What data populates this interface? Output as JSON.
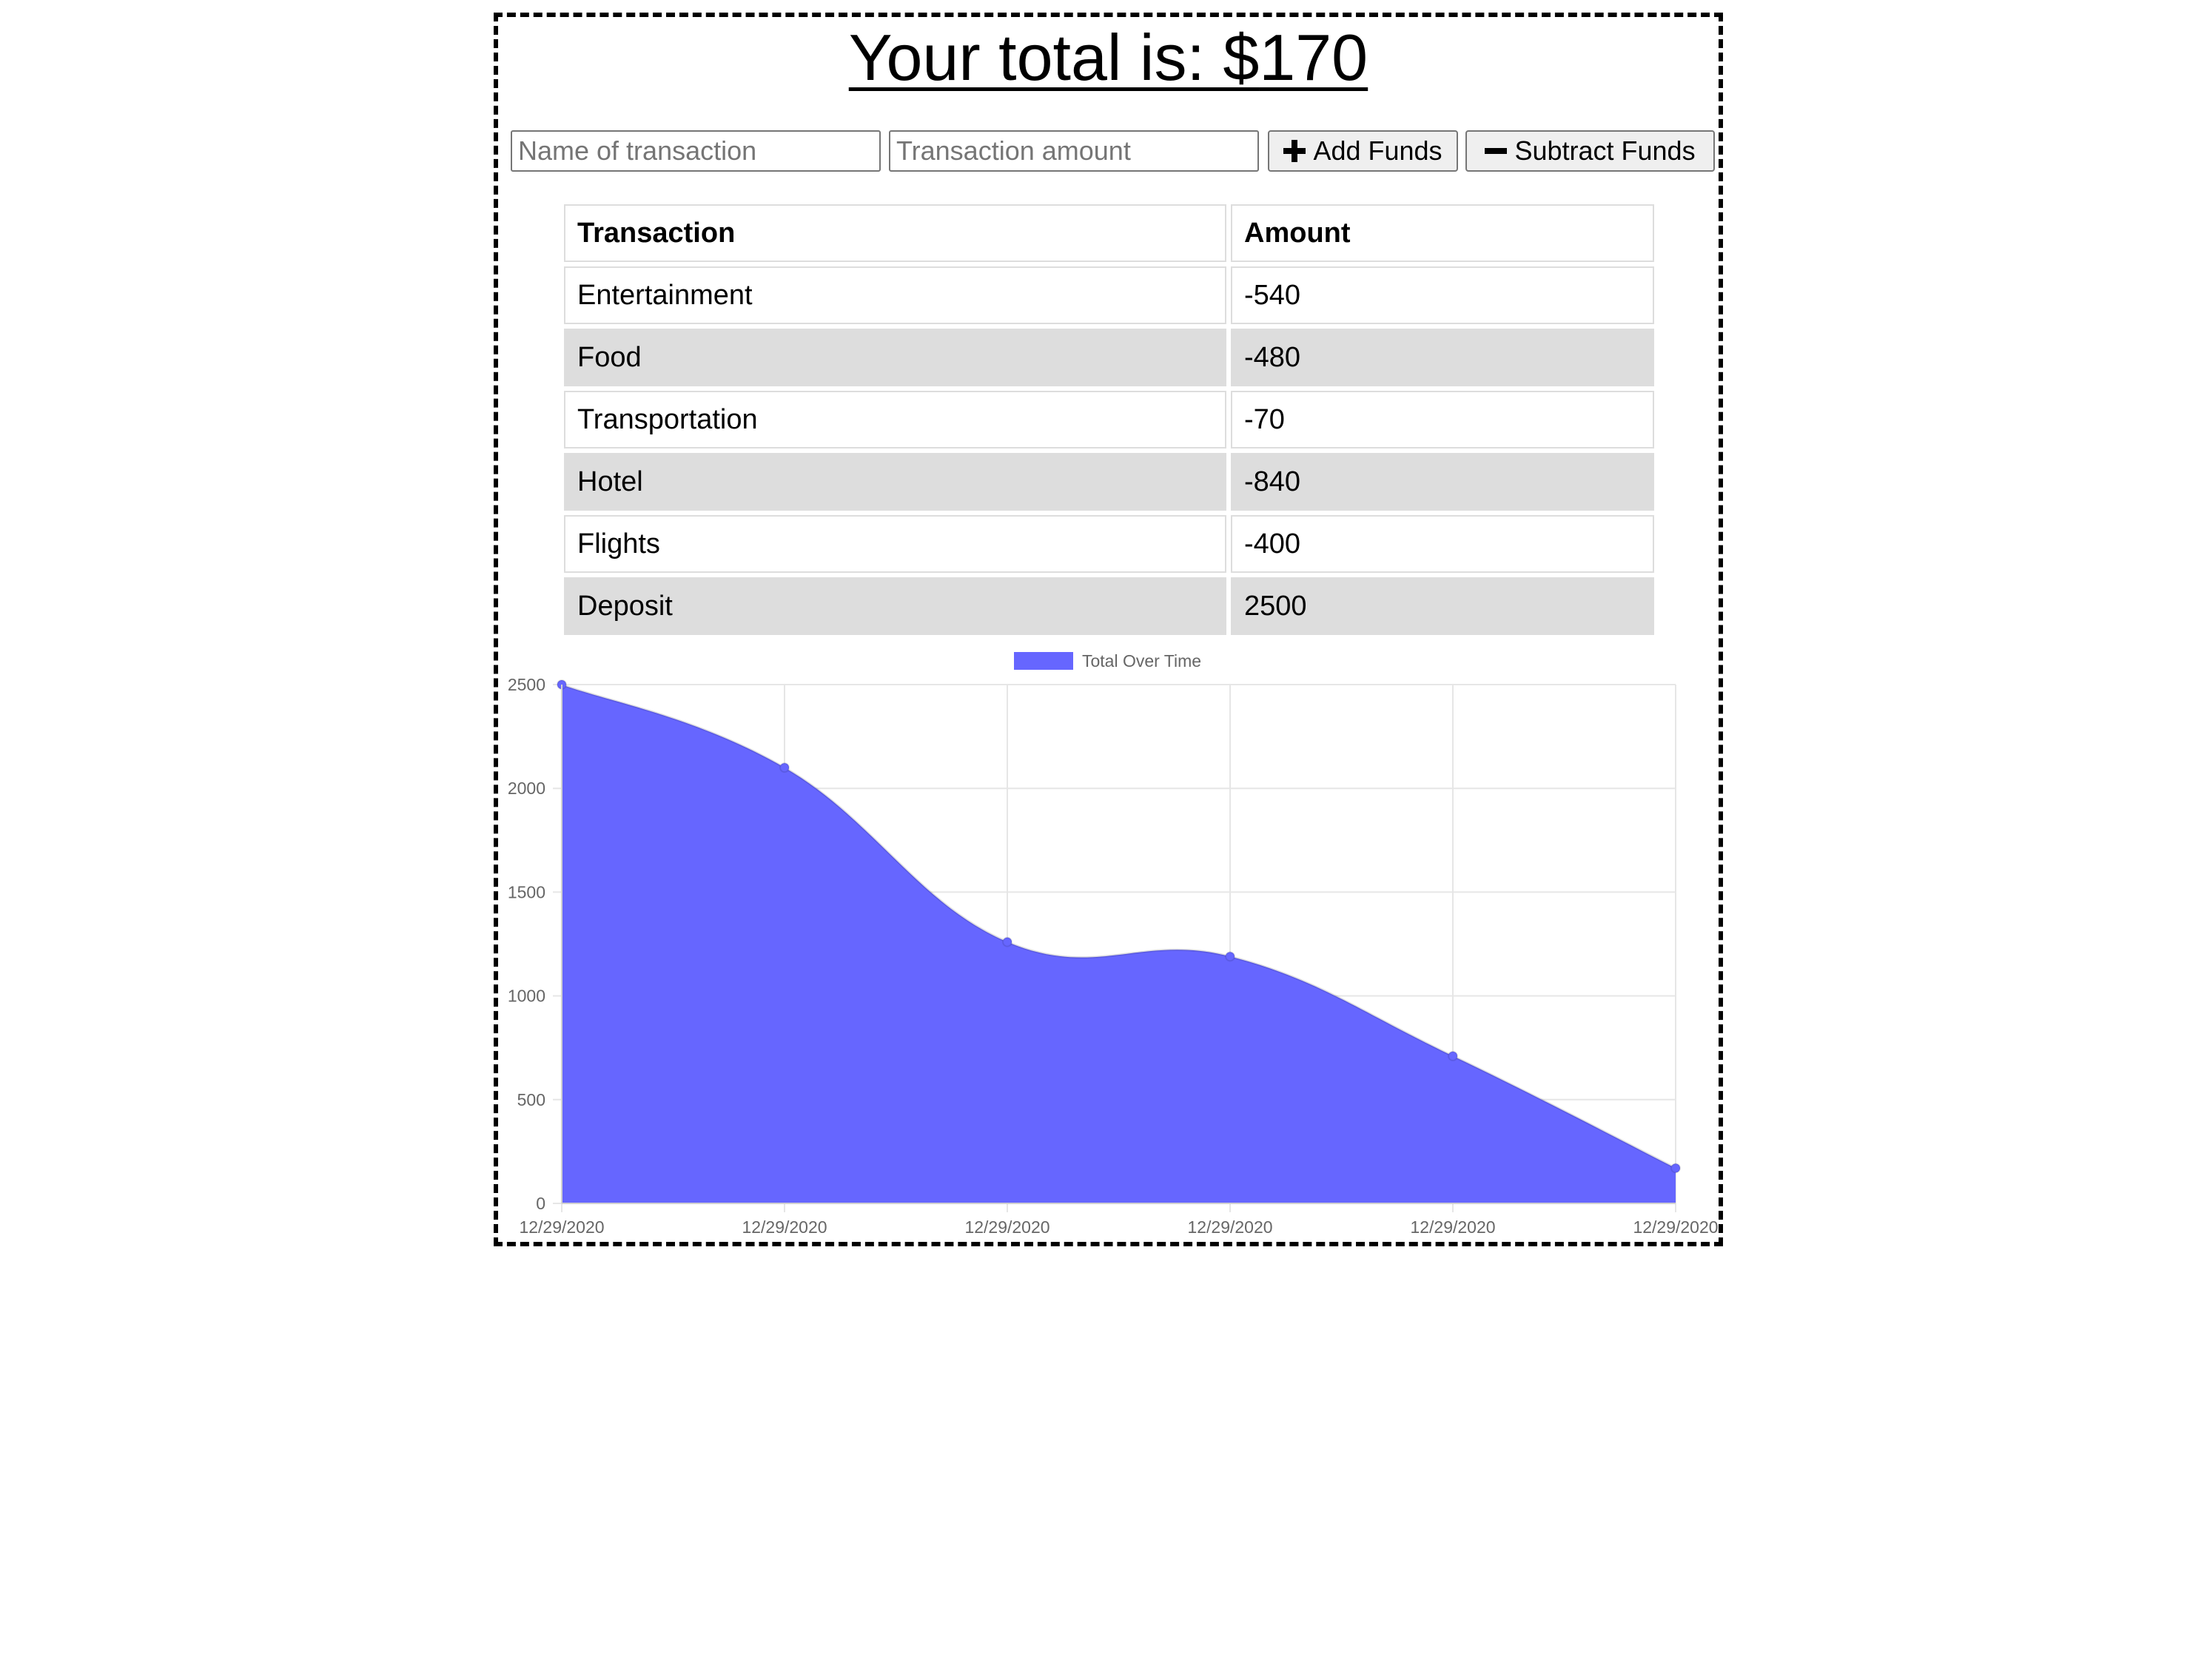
{
  "header": {
    "total_prefix": "Your total is: $",
    "total_value": "170"
  },
  "form": {
    "name_placeholder": "Name of transaction",
    "amount_placeholder": "Transaction amount",
    "add_label": "Add Funds",
    "subtract_label": "Subtract Funds",
    "add_icon": "plus-icon",
    "subtract_icon": "minus-icon"
  },
  "table": {
    "headers": [
      "Transaction",
      "Amount"
    ],
    "rows": [
      {
        "name": "Entertainment",
        "amount": "-540"
      },
      {
        "name": "Food",
        "amount": "-480"
      },
      {
        "name": "Transportation",
        "amount": "-70"
      },
      {
        "name": "Hotel",
        "amount": "-840"
      },
      {
        "name": "Flights",
        "amount": "-400"
      },
      {
        "name": "Deposit",
        "amount": "2500"
      }
    ],
    "stripe_color": "#dddddd"
  },
  "chart_data": {
    "type": "area",
    "x": [
      "12/29/2020",
      "12/29/2020",
      "12/29/2020",
      "12/29/2020",
      "12/29/2020",
      "12/29/2020"
    ],
    "series": [
      {
        "name": "Total Over Time",
        "values": [
          2500,
          2100,
          1260,
          1190,
          710,
          170
        ],
        "color": "#6666ff"
      }
    ],
    "y_ticks": [
      0,
      500,
      1000,
      1500,
      2000,
      2500
    ],
    "ylim": [
      0,
      2500
    ],
    "grid": true,
    "legend": "top-center"
  }
}
